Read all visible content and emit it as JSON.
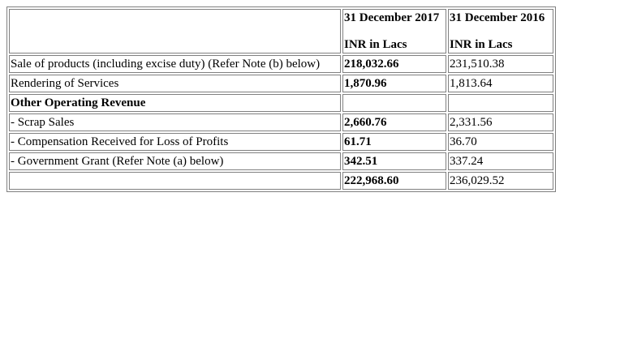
{
  "table": {
    "header": {
      "col1_line1": "31 December 2017",
      "col1_line2": "INR in Lacs",
      "col2_line1": "31 December 2016",
      "col2_line2": "INR in Lacs"
    },
    "rows": [
      {
        "label": "Sale of products (including excise duty) (Refer Note (b) below)",
        "v2017": "218,032.66",
        "v2016": "231,510.38"
      },
      {
        "label": "Rendering of Services",
        "v2017": "1,870.96",
        "v2016": "1,813.64"
      },
      {
        "label": "Other Operating Revenue",
        "v2017": "",
        "v2016": ""
      },
      {
        "label": "- Scrap Sales",
        "v2017": "2,660.76",
        "v2016": "2,331.56"
      },
      {
        "label": "- Compensation Received for Loss of Profits",
        "v2017": "61.71",
        "v2016": "36.70"
      },
      {
        "label": "- Government Grant (Refer Note (a) below)",
        "v2017": "342.51",
        "v2016": "337.24"
      },
      {
        "label": "",
        "v2017": "222,968.60",
        "v2016": "236,029.52"
      }
    ]
  }
}
